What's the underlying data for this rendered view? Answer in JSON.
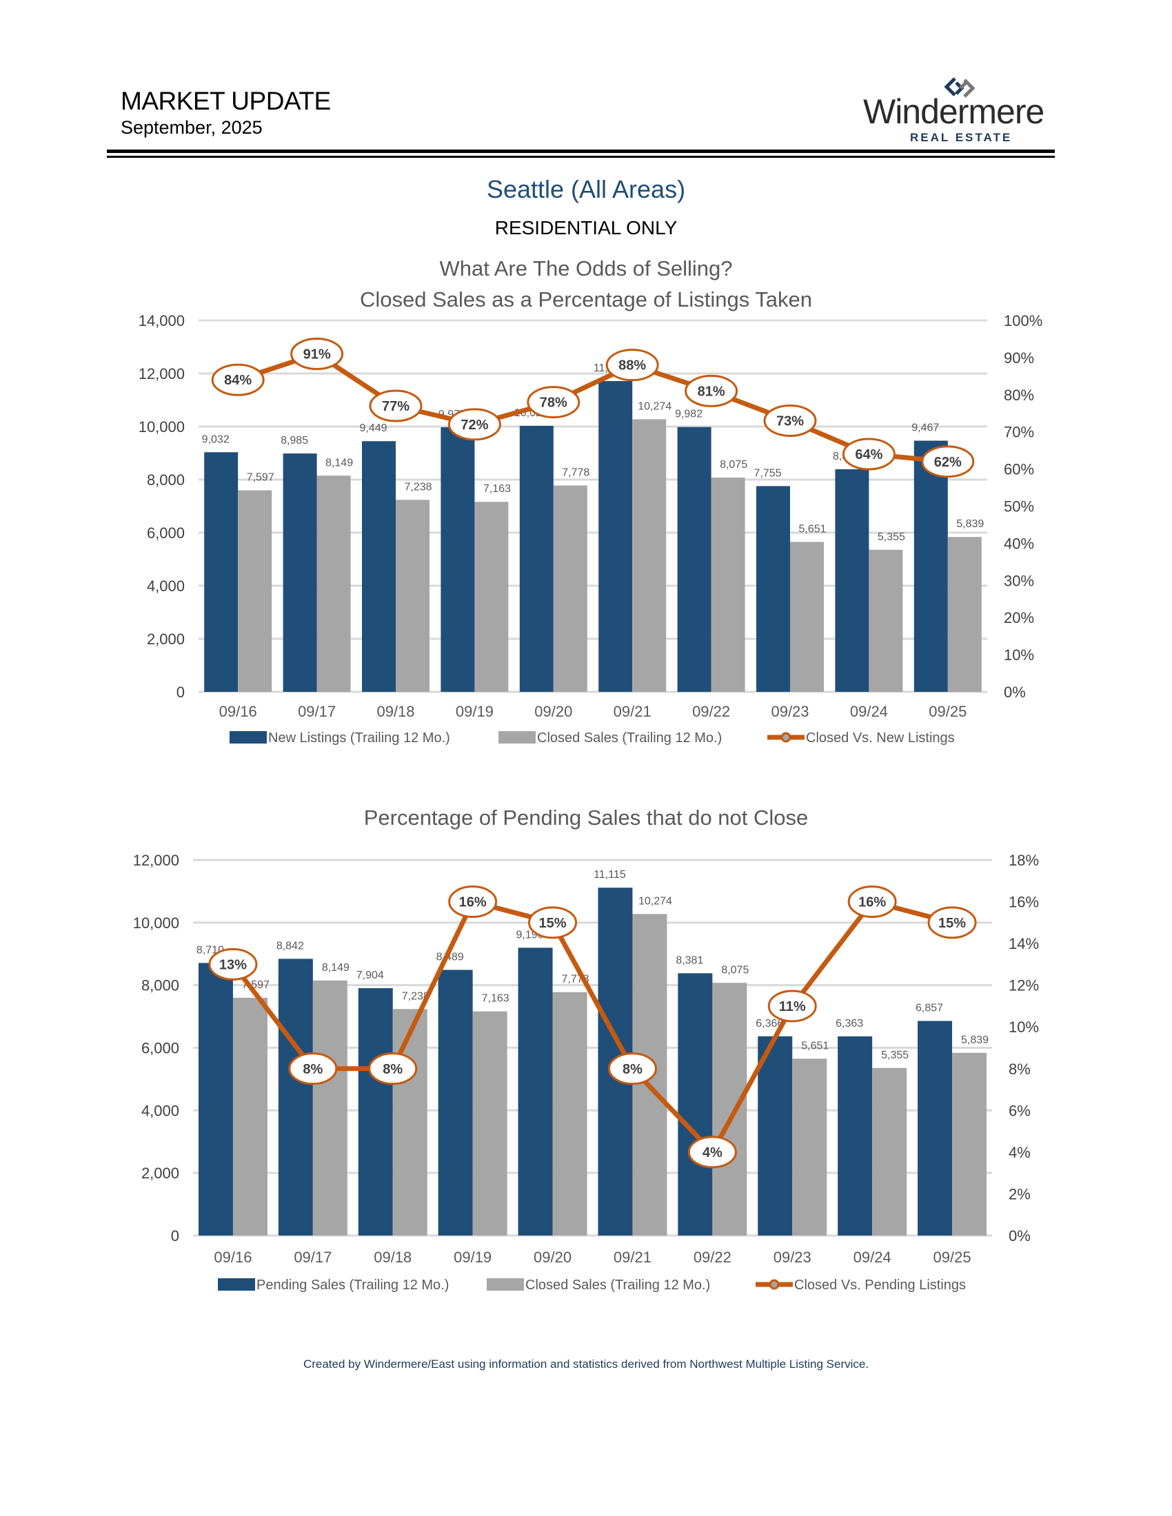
{
  "header": {
    "title": "MARKET UPDATE",
    "date": "September, 2025",
    "logo_name": "Windermere",
    "logo_sub": "REAL ESTATE"
  },
  "page": {
    "title": "Seattle (All Areas)",
    "subtitle": "RESIDENTIAL ONLY",
    "footer": "Created by Windermere/East using information and statistics derived from  Northwest Multiple Listing Service."
  },
  "colors": {
    "blue": "#1f4e79",
    "gray": "#a6a6a6",
    "orange": "#c55a11",
    "grid": "#d9d9d9"
  },
  "chart_data": [
    {
      "type": "bar",
      "title": "What Are The Odds of Selling?",
      "subtitle": "Closed Sales as a Percentage of Listings Taken",
      "categories": [
        "09/16",
        "09/17",
        "09/18",
        "09/19",
        "09/20",
        "09/21",
        "09/22",
        "09/23",
        "09/24",
        "09/25"
      ],
      "series": [
        {
          "name": "New Listings (Trailing 12 Mo.)",
          "kind": "bar",
          "axis": "left",
          "values": [
            9032,
            8985,
            9449,
            9975,
            10026,
            11714,
            9982,
            7755,
            8390,
            9467
          ],
          "labels": [
            "9,032",
            "8,985",
            "9,449",
            "9,975",
            "10,026",
            "11,714",
            "9,982",
            "7,755",
            "8,390",
            "9,467"
          ]
        },
        {
          "name": "Closed Sales (Trailing 12 Mo.)",
          "kind": "bar",
          "axis": "left",
          "values": [
            7597,
            8149,
            7238,
            7163,
            7778,
            10274,
            8075,
            5651,
            5355,
            5839
          ],
          "labels": [
            "7,597",
            "8,149",
            "7,238",
            "7,163",
            "7,778",
            "10,274",
            "8,075",
            "5,651",
            "5,355",
            "5,839"
          ]
        },
        {
          "name": "Closed Vs. New Listings",
          "kind": "line",
          "axis": "right",
          "values": [
            84,
            91,
            77,
            72,
            78,
            88,
            81,
            73,
            64,
            62
          ],
          "labels": [
            "84%",
            "91%",
            "77%",
            "72%",
            "78%",
            "88%",
            "81%",
            "73%",
            "64%",
            "62%"
          ]
        }
      ],
      "ylim": [
        0,
        14000
      ],
      "yticks": [
        0,
        2000,
        4000,
        6000,
        8000,
        10000,
        12000,
        14000
      ],
      "ytick_labels": [
        "0",
        "2,000",
        "4,000",
        "6,000",
        "8,000",
        "10,000",
        "12,000",
        "14,000"
      ],
      "y2lim": [
        0,
        100
      ],
      "y2ticks": [
        0,
        10,
        20,
        30,
        40,
        50,
        60,
        70,
        80,
        90,
        100
      ],
      "y2tick_labels": [
        "0%",
        "10%",
        "20%",
        "30%",
        "40%",
        "50%",
        "60%",
        "70%",
        "80%",
        "90%",
        "100%"
      ],
      "grid": true,
      "legend": "bottom"
    },
    {
      "type": "bar",
      "title": "Percentage of Pending Sales that do not Close",
      "subtitle": "",
      "categories": [
        "09/16",
        "09/17",
        "09/18",
        "09/19",
        "09/20",
        "09/21",
        "09/22",
        "09/23",
        "09/24",
        "09/25"
      ],
      "series": [
        {
          "name": "Pending Sales (Trailing 12 Mo.)",
          "kind": "bar",
          "axis": "left",
          "values": [
            8710,
            8842,
            7904,
            8489,
            9196,
            11115,
            8381,
            6366,
            6363,
            6857
          ],
          "labels": [
            "8,710",
            "8,842",
            "7,904",
            "8,489",
            "9,196",
            "11,115",
            "8,381",
            "6,366",
            "6,363",
            "6,857"
          ]
        },
        {
          "name": "Closed Sales (Trailing 12 Mo.)",
          "kind": "bar",
          "axis": "left",
          "values": [
            7597,
            8149,
            7238,
            7163,
            7778,
            10274,
            8075,
            5651,
            5355,
            5839
          ],
          "labels": [
            "7,597",
            "8,149",
            "7,238",
            "7,163",
            "7,778",
            "10,274",
            "8,075",
            "5,651",
            "5,355",
            "5,839"
          ]
        },
        {
          "name": "Closed Vs. Pending Listings",
          "kind": "line",
          "axis": "right",
          "values": [
            13,
            8,
            8,
            16,
            15,
            8,
            4,
            11,
            16,
            15
          ],
          "labels": [
            "13%",
            "8%",
            "8%",
            "16%",
            "15%",
            "8%",
            "4%",
            "11%",
            "16%",
            "15%"
          ]
        }
      ],
      "ylim": [
        0,
        12000
      ],
      "yticks": [
        0,
        2000,
        4000,
        6000,
        8000,
        10000,
        12000
      ],
      "ytick_labels": [
        "0",
        "2,000",
        "4,000",
        "6,000",
        "8,000",
        "10,000",
        "12,000"
      ],
      "y2lim": [
        0,
        18
      ],
      "y2ticks": [
        0,
        2,
        4,
        6,
        8,
        10,
        12,
        14,
        16,
        18
      ],
      "y2tick_labels": [
        "0%",
        "2%",
        "4%",
        "6%",
        "8%",
        "10%",
        "12%",
        "14%",
        "16%",
        "18%"
      ],
      "grid": true,
      "legend": "bottom"
    }
  ]
}
